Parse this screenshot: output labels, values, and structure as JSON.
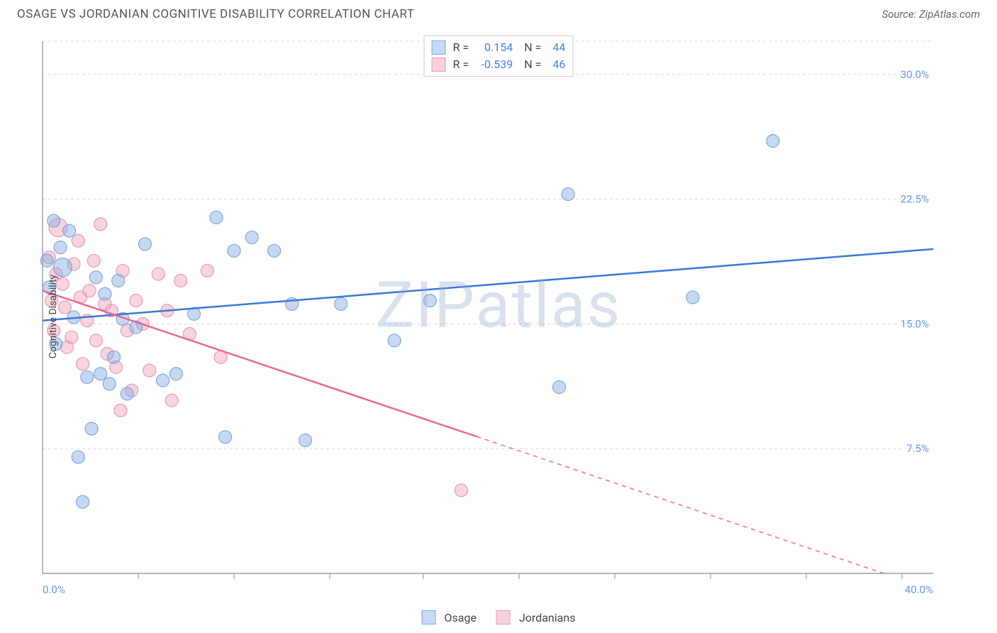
{
  "title": "OSAGE VS JORDANIAN COGNITIVE DISABILITY CORRELATION CHART",
  "source": "Source: ZipAtlas.com",
  "watermark": "ZIPatlas",
  "ylabel": "Cognitive Disability",
  "chart": {
    "type": "scatter",
    "xlim": [
      0,
      40
    ],
    "ylim": [
      0,
      32
    ],
    "ytick_values": [
      7.5,
      15.0,
      22.5,
      30.0
    ],
    "ytick_labels": [
      "7.5%",
      "15.0%",
      "22.5%",
      "30.0%"
    ],
    "x_minmax_labels": [
      "0.0%",
      "40.0%"
    ],
    "x_tick_positions": [
      4.3,
      8.6,
      12.9,
      17.1,
      21.4,
      25.7,
      30.0,
      34.3,
      38.6
    ],
    "grid_color": "#d9d9d9",
    "axis_color": "#888888",
    "background_color": "#ffffff",
    "marker_radius": 9,
    "marker_radius_large": 13,
    "line_width": 2.5,
    "series": [
      {
        "name": "Osage",
        "color_fill": "rgba(130,170,225,0.45)",
        "color_stroke": "#7fa8dd",
        "swatch_fill": "#c6daf2",
        "swatch_border": "#7fa8dd",
        "R": "0.154",
        "N": "44",
        "trend": {
          "x1": 0,
          "y1": 15.2,
          "x2": 40,
          "y2": 19.5,
          "dashed_from_x": null
        },
        "points": [
          [
            0.2,
            18.8
          ],
          [
            0.3,
            17.2
          ],
          [
            0.5,
            21.2
          ],
          [
            0.6,
            13.8
          ],
          [
            0.8,
            19.6
          ],
          [
            0.9,
            18.4,
            13
          ],
          [
            1.2,
            20.6
          ],
          [
            1.4,
            15.4
          ],
          [
            1.6,
            7.0
          ],
          [
            1.8,
            4.3
          ],
          [
            2.0,
            11.8
          ],
          [
            2.2,
            8.7
          ],
          [
            2.4,
            17.8
          ],
          [
            2.6,
            12.0
          ],
          [
            2.8,
            16.8
          ],
          [
            3.0,
            11.4
          ],
          [
            3.2,
            13.0
          ],
          [
            3.4,
            17.6
          ],
          [
            3.6,
            15.3
          ],
          [
            3.8,
            10.8
          ],
          [
            4.2,
            14.8
          ],
          [
            4.6,
            19.8
          ],
          [
            5.4,
            11.6
          ],
          [
            6.0,
            12.0
          ],
          [
            6.8,
            15.6
          ],
          [
            7.8,
            21.4
          ],
          [
            8.2,
            8.2
          ],
          [
            8.6,
            19.4
          ],
          [
            9.4,
            20.2
          ],
          [
            10.4,
            19.4
          ],
          [
            11.2,
            16.2
          ],
          [
            11.8,
            8.0
          ],
          [
            13.4,
            16.2
          ],
          [
            15.8,
            14.0
          ],
          [
            17.4,
            16.4
          ],
          [
            23.2,
            11.2
          ],
          [
            23.6,
            22.8
          ],
          [
            29.2,
            16.6
          ],
          [
            32.8,
            26.0
          ]
        ]
      },
      {
        "name": "Jordanians",
        "color_fill": "rgba(240,160,185,0.45)",
        "color_stroke": "#e89ab2",
        "swatch_fill": "#f6d2dd",
        "swatch_border": "#e89ab2",
        "R": "-0.539",
        "N": "46",
        "trend": {
          "x1": 0,
          "y1": 17.0,
          "x2": 40,
          "y2": -1.0,
          "dashed_from_x": 19.5
        },
        "points": [
          [
            0.3,
            19.0
          ],
          [
            0.4,
            16.4
          ],
          [
            0.5,
            14.6
          ],
          [
            0.6,
            18.0
          ],
          [
            0.7,
            20.8,
            13
          ],
          [
            0.9,
            17.4
          ],
          [
            1.0,
            16.0
          ],
          [
            1.1,
            13.6
          ],
          [
            1.3,
            14.2
          ],
          [
            1.4,
            18.6
          ],
          [
            1.6,
            20.0
          ],
          [
            1.7,
            16.6
          ],
          [
            1.8,
            12.6
          ],
          [
            2.0,
            15.2
          ],
          [
            2.1,
            17.0
          ],
          [
            2.3,
            18.8
          ],
          [
            2.4,
            14.0
          ],
          [
            2.6,
            21.0
          ],
          [
            2.8,
            16.2
          ],
          [
            2.9,
            13.2
          ],
          [
            3.1,
            15.8
          ],
          [
            3.3,
            12.4
          ],
          [
            3.5,
            9.8
          ],
          [
            3.6,
            18.2
          ],
          [
            3.8,
            14.6
          ],
          [
            4.0,
            11.0
          ],
          [
            4.2,
            16.4
          ],
          [
            4.5,
            15.0
          ],
          [
            4.8,
            12.2
          ],
          [
            5.2,
            18.0
          ],
          [
            5.6,
            15.8
          ],
          [
            5.8,
            10.4
          ],
          [
            6.2,
            17.6
          ],
          [
            6.6,
            14.4
          ],
          [
            7.4,
            18.2
          ],
          [
            8.0,
            13.0
          ],
          [
            18.8,
            5.0
          ]
        ]
      }
    ]
  },
  "legend": {
    "series1_label": "Osage",
    "series2_label": "Jordanians"
  }
}
